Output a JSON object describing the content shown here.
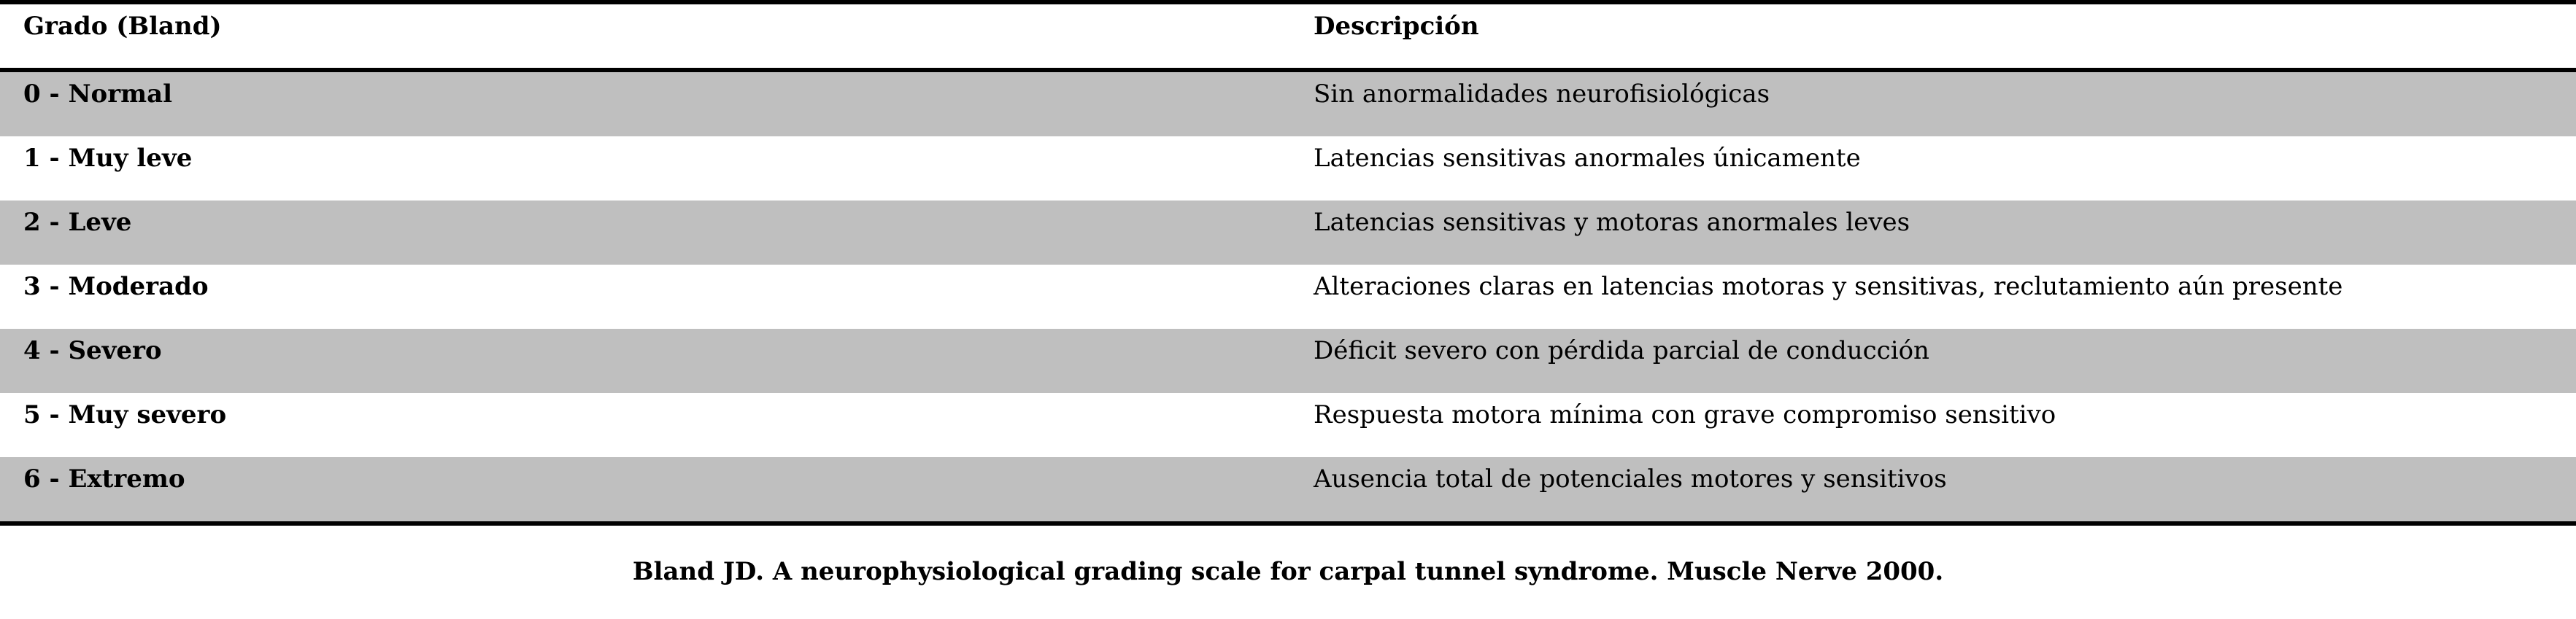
{
  "table": {
    "headers": {
      "grade": "Grado (Bland)",
      "description": "Descripción"
    },
    "rows": [
      {
        "grade": "0 - Normal",
        "description": "Sin anormalidades neurofisiológicas"
      },
      {
        "grade": "1 - Muy leve",
        "description": "Latencias sensitivas anormales únicamente"
      },
      {
        "grade": "2 - Leve",
        "description": "Latencias sensitivas y motoras anormales leves"
      },
      {
        "grade": "3 - Moderado",
        "description": "Alteraciones claras en latencias motoras y sensitivas, reclutamiento aún presente"
      },
      {
        "grade": "4 - Severo",
        "description": "Déficit severo con pérdida parcial de conducción"
      },
      {
        "grade": "5 - Muy severo",
        "description": "Respuesta motora mínima con grave compromiso sensitivo"
      },
      {
        "grade": "6 - Extremo",
        "description": "Ausencia total de potenciales motores y sensitivos"
      }
    ]
  },
  "caption": "Bland JD. A neurophysiological grading scale for carpal tunnel syndrome. Muscle Nerve 2000.",
  "colors": {
    "shaded_row": "#bfbfbf",
    "plain_row": "#ffffff",
    "rule": "#000000"
  }
}
